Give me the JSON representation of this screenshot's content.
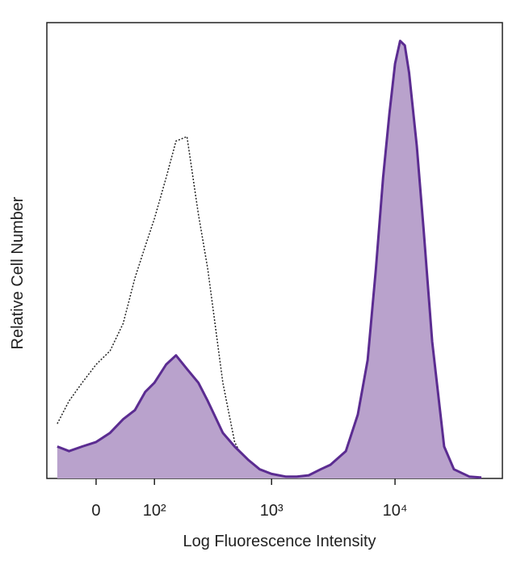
{
  "chart_data": {
    "type": "histogram-overlay",
    "xlabel": "Log Fluorescence Intensity",
    "ylabel": "Relative Cell Number",
    "xscale": "biexponential",
    "xlim": [
      -80,
      74000
    ],
    "ylim": [
      0,
      100
    ],
    "xticks": [
      0,
      {
        "value": 100,
        "label": "10²"
      },
      {
        "value": 1000,
        "label": "10³"
      },
      {
        "value": 10000,
        "label": "10⁴"
      }
    ],
    "x": [
      -60,
      -40,
      -20,
      0,
      20,
      40,
      60,
      80,
      100,
      130,
      160,
      200,
      250,
      300,
      400,
      500,
      650,
      800,
      1000,
      1300,
      1600,
      2000,
      2500,
      3000,
      4000,
      5000,
      6000,
      7000,
      8000,
      9000,
      10000,
      11000,
      12000,
      13000,
      15000,
      17000,
      20000,
      25000,
      30000,
      40000,
      50000
    ],
    "series": [
      {
        "style": "dotted",
        "color": "#222222",
        "values": [
          12,
          17,
          21,
          25,
          28,
          34,
          44,
          51,
          57,
          66,
          74,
          75,
          58,
          46,
          21,
          8,
          2,
          0.5,
          0,
          null,
          null,
          null,
          null,
          null,
          null,
          null,
          null,
          null,
          null,
          null,
          null,
          null,
          null,
          null,
          null,
          null,
          null,
          null,
          null,
          null,
          null
        ]
      },
      {
        "style": "filled",
        "color": "#5b2c91",
        "fill": "#b9a2cc",
        "values": [
          7,
          6,
          7,
          8,
          10,
          13,
          15,
          19,
          21,
          25,
          27,
          24,
          21,
          17,
          10,
          7,
          4,
          2,
          1,
          0.4,
          0.4,
          0.7,
          2,
          3,
          6,
          14,
          26,
          46,
          66,
          80,
          91,
          96,
          95,
          89,
          73,
          55,
          30,
          7,
          2,
          0.4,
          0.2
        ]
      }
    ]
  }
}
